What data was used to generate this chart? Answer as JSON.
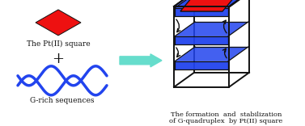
{
  "bg_color": "#ffffff",
  "red_color": "#ee1111",
  "blue_color": "#2244ee",
  "cyan_arrow_color": "#66ddcc",
  "black_color": "#111111",
  "label_pt_square": "The Pt(II) square",
  "label_grich": "G-rich sequences",
  "label_formation_1": "The formation  and  stabilization",
  "label_formation_2": "of G-quadruplex  by Pt(II) square",
  "plus_sign": "+",
  "label_fontsize": 6.5,
  "title_fontsize": 6.0
}
